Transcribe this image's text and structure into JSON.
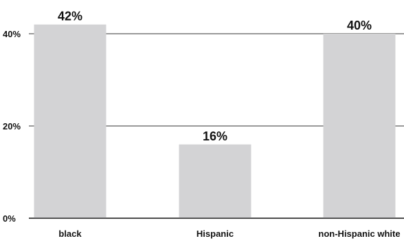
{
  "colors": {
    "bar": "#d3d3d5",
    "gridline": "#333333",
    "text": "#111111",
    "background": "#ffffff"
  },
  "chart_data": {
    "type": "bar",
    "title": "",
    "xlabel": "",
    "ylabel": "",
    "categories": [
      "black",
      "Hispanic",
      "non-Hispanic white"
    ],
    "values": [
      42,
      16,
      40
    ],
    "value_labels": [
      "42%",
      "16%",
      "40%"
    ],
    "yticks": [
      0,
      20,
      40
    ],
    "ytick_labels": [
      "0%",
      "20%",
      "40%"
    ],
    "ylim": [
      0,
      42
    ],
    "grid": true,
    "legend": "none"
  }
}
